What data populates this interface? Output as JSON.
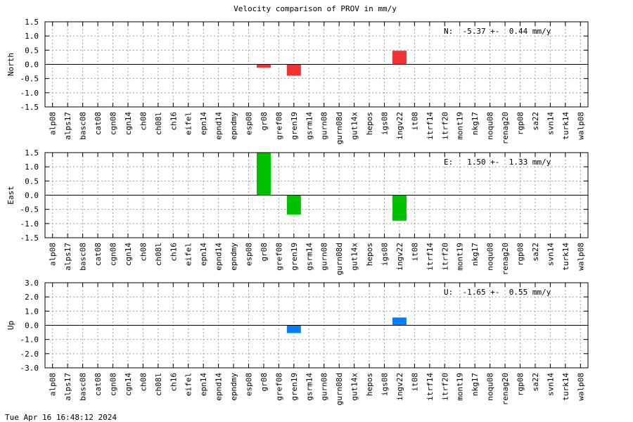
{
  "chart_data": {
    "type": "bar",
    "title": "Velocity comparison of PROV in mm/y",
    "categories": [
      "alp08",
      "alps17",
      "basc08",
      "cat08",
      "cgn08",
      "cgn14",
      "ch08",
      "ch08l",
      "ch16",
      "eifel",
      "epn14",
      "epnd14",
      "epndmy",
      "esp08",
      "gr08",
      "gref08",
      "gren19",
      "gsrm14",
      "gurn08",
      "gurn08d",
      "gut14x",
      "hepos",
      "igs08",
      "ingv22",
      "it08",
      "itrf14",
      "itrf20",
      "mont19",
      "nkg17",
      "noqu08",
      "renag20",
      "rgp08",
      "sa22",
      "svn14",
      "turk14",
      "walp08"
    ],
    "panels": [
      {
        "ylabel": "North",
        "ylim": [
          -1.5,
          1.5
        ],
        "yticks": [
          "-1.5",
          "-1.0",
          "-0.5",
          "0.0",
          "0.5",
          "1.0",
          "1.5"
        ],
        "yvalues": [
          -1.5,
          -1.0,
          -0.5,
          0.0,
          0.5,
          1.0,
          1.5
        ],
        "color": "#f03232",
        "annotation": "N:  -5.37 +-  0.44 mm/y",
        "bars": [
          {
            "category": "gr08",
            "value": -0.12
          },
          {
            "category": "gren19",
            "value": -0.4
          },
          {
            "category": "ingv22",
            "value": 0.48
          }
        ]
      },
      {
        "ylabel": "East",
        "ylim": [
          -1.5,
          1.5
        ],
        "yticks": [
          "-1.5",
          "-1.0",
          "-0.5",
          "0.0",
          "0.5",
          "1.0",
          "1.5"
        ],
        "yvalues": [
          -1.5,
          -1.0,
          -0.5,
          0.0,
          0.5,
          1.0,
          1.5
        ],
        "color": "#00c000",
        "annotation": "E:   1.50 +-  1.33 mm/y",
        "bars": [
          {
            "category": "gr08",
            "value": 1.5
          },
          {
            "category": "gren19",
            "value": -0.68
          },
          {
            "category": "ingv22",
            "value": -0.9
          }
        ]
      },
      {
        "ylabel": "Up",
        "ylim": [
          -3.0,
          3.0
        ],
        "yticks": [
          "-3.0",
          "-2.0",
          "-1.0",
          "0.0",
          "1.0",
          "2.0",
          "3.0"
        ],
        "yvalues": [
          -3.0,
          -2.0,
          -1.0,
          0.0,
          1.0,
          2.0,
          3.0
        ],
        "color": "#0080ff",
        "annotation": "U:  -1.65 +-  0.55 mm/y",
        "bars": [
          {
            "category": "gren19",
            "value": -0.55
          },
          {
            "category": "ingv22",
            "value": 0.55
          }
        ]
      }
    ]
  },
  "footer": {
    "timestamp": "Tue Apr 16 16:48:12 2024"
  }
}
